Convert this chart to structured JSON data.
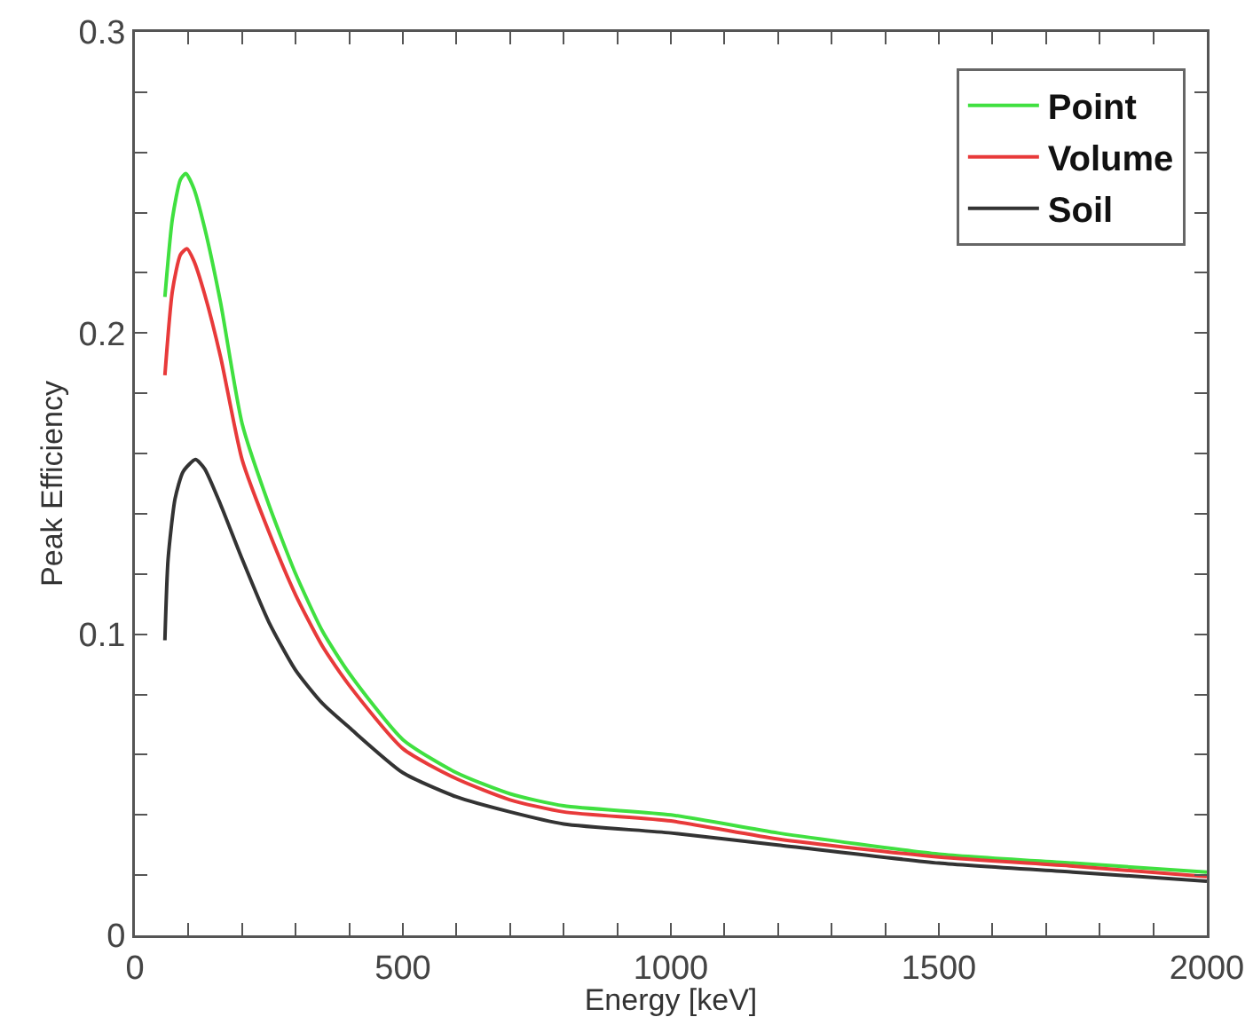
{
  "chart_data": {
    "type": "line",
    "xlabel": "Energy [keV]",
    "ylabel": "Peak Efficiency",
    "xlim": [
      0,
      2000
    ],
    "ylim": [
      0,
      0.3
    ],
    "xticks": [
      0,
      {
        "value": 100,
        "label": null
      },
      {
        "value": 200,
        "label": null
      },
      {
        "value": 300,
        "label": null
      },
      {
        "value": 400,
        "label": null
      },
      500,
      {
        "value": 600,
        "label": null
      },
      {
        "value": 700,
        "label": null
      },
      {
        "value": 800,
        "label": null
      },
      {
        "value": 900,
        "label": null
      },
      1000,
      {
        "value": 1100,
        "label": null
      },
      {
        "value": 1200,
        "label": null
      },
      {
        "value": 1300,
        "label": null
      },
      {
        "value": 1400,
        "label": null
      },
      1500,
      {
        "value": 1600,
        "label": null
      },
      {
        "value": 1700,
        "label": null
      },
      {
        "value": 1800,
        "label": null
      },
      {
        "value": 1900,
        "label": null
      },
      2000
    ],
    "yticks": [
      0,
      {
        "value": 0.02,
        "label": null
      },
      {
        "value": 0.04,
        "label": null
      },
      {
        "value": 0.06,
        "label": null
      },
      {
        "value": 0.08,
        "label": null
      },
      0.1,
      {
        "value": 0.12,
        "label": null
      },
      {
        "value": 0.14,
        "label": null
      },
      {
        "value": 0.16,
        "label": null
      },
      {
        "value": 0.18,
        "label": null
      },
      0.2,
      {
        "value": 0.22,
        "label": null
      },
      {
        "value": 0.24,
        "label": null
      },
      {
        "value": 0.26,
        "label": null
      },
      {
        "value": 0.28,
        "label": null
      },
      0.3
    ],
    "grid": false,
    "legend": "top right",
    "marker": "none",
    "line_style": "solid",
    "series": [
      {
        "name": "Point",
        "color": "#40e040",
        "x": [
          56,
          70,
          85,
          95,
          110,
          130,
          160,
          200,
          250,
          300,
          350,
          400,
          500,
          600,
          700,
          800,
          1000,
          1200,
          1500,
          1750,
          2000
        ],
        "values": [
          0.212,
          0.238,
          0.251,
          0.253,
          0.248,
          0.235,
          0.21,
          0.17,
          0.143,
          0.12,
          0.101,
          0.087,
          0.065,
          0.054,
          0.047,
          0.043,
          0.04,
          0.034,
          0.027,
          0.024,
          0.021
        ]
      },
      {
        "name": "Volume",
        "color": "#e83a3a",
        "x": [
          56,
          70,
          85,
          97,
          110,
          130,
          160,
          200,
          250,
          300,
          350,
          400,
          500,
          600,
          700,
          800,
          1000,
          1200,
          1500,
          1750,
          2000
        ],
        "values": [
          0.186,
          0.214,
          0.226,
          0.228,
          0.224,
          0.213,
          0.192,
          0.158,
          0.134,
          0.113,
          0.096,
          0.083,
          0.062,
          0.052,
          0.045,
          0.041,
          0.038,
          0.032,
          0.026,
          0.023,
          0.0195
        ]
      },
      {
        "name": "Soil",
        "color": "#333333",
        "x": [
          56,
          62,
          75,
          90,
          113,
          130,
          160,
          200,
          250,
          300,
          350,
          400,
          500,
          600,
          700,
          800,
          1000,
          1200,
          1500,
          1750,
          2000
        ],
        "values": [
          0.098,
          0.125,
          0.145,
          0.154,
          0.158,
          0.155,
          0.143,
          0.125,
          0.104,
          0.088,
          0.077,
          0.069,
          0.054,
          0.046,
          0.041,
          0.037,
          0.034,
          0.03,
          0.024,
          0.021,
          0.018
        ]
      }
    ]
  }
}
